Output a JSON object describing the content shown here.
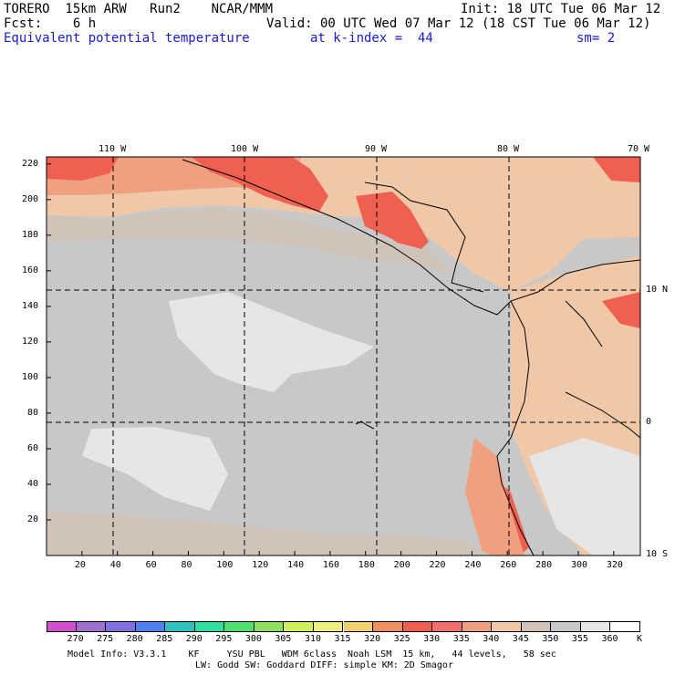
{
  "header": {
    "model": "TORERO  15km ARW   Run2    NCAR/MMM",
    "init": "Init: 18 UTC Tue 06 Mar 12",
    "fcst": "Fcst:    6 h",
    "valid": "Valid: 00 UTC Wed 07 Mar 12 (18 CST Tue 06 Mar 12)",
    "field": "Equivalent potential temperature",
    "level": "at k-index =  44",
    "smoothing": "sm= 2"
  },
  "map": {
    "lon_labels": [
      "110 W",
      "100 W",
      "90 W",
      "80 W",
      "70 W"
    ],
    "lat_labels": [
      "10 N",
      "0",
      "10 S"
    ],
    "x_ticks": [
      "20",
      "40",
      "60",
      "80",
      "100",
      "120",
      "140",
      "160",
      "180",
      "200",
      "220",
      "240",
      "260",
      "280",
      "300",
      "320"
    ],
    "y_ticks": [
      "220",
      "200",
      "180",
      "160",
      "140",
      "120",
      "100",
      "80",
      "60",
      "40",
      "20"
    ]
  },
  "colorbar": {
    "labels": [
      "270",
      "275",
      "280",
      "285",
      "290",
      "295",
      "300",
      "305",
      "310",
      "315",
      "320",
      "325",
      "330",
      "335",
      "340",
      "345",
      "350",
      "355",
      "360"
    ],
    "unit": "K",
    "colors": [
      "#d050d0",
      "#a070d0",
      "#8070e0",
      "#5080f0",
      "#30c0c0",
      "#30e0a0",
      "#50e070",
      "#90e060",
      "#d0f060",
      "#f0f080",
      "#f0d070",
      "#f09060",
      "#f06050",
      "#f07070",
      "#f0a080",
      "#f0c8a8",
      "#d0c4b8",
      "#c8c8c8",
      "#e6e6e6",
      "#ffffff"
    ]
  },
  "footer": {
    "line1": "Model Info: V3.3.1    KF     YSU PBL   WDM 6class  Noah LSM  15 km,   44 levels,   58 sec",
    "line2": "LW: Godd SW: Goddard DIFF: simple KM: 2D Smagor"
  }
}
